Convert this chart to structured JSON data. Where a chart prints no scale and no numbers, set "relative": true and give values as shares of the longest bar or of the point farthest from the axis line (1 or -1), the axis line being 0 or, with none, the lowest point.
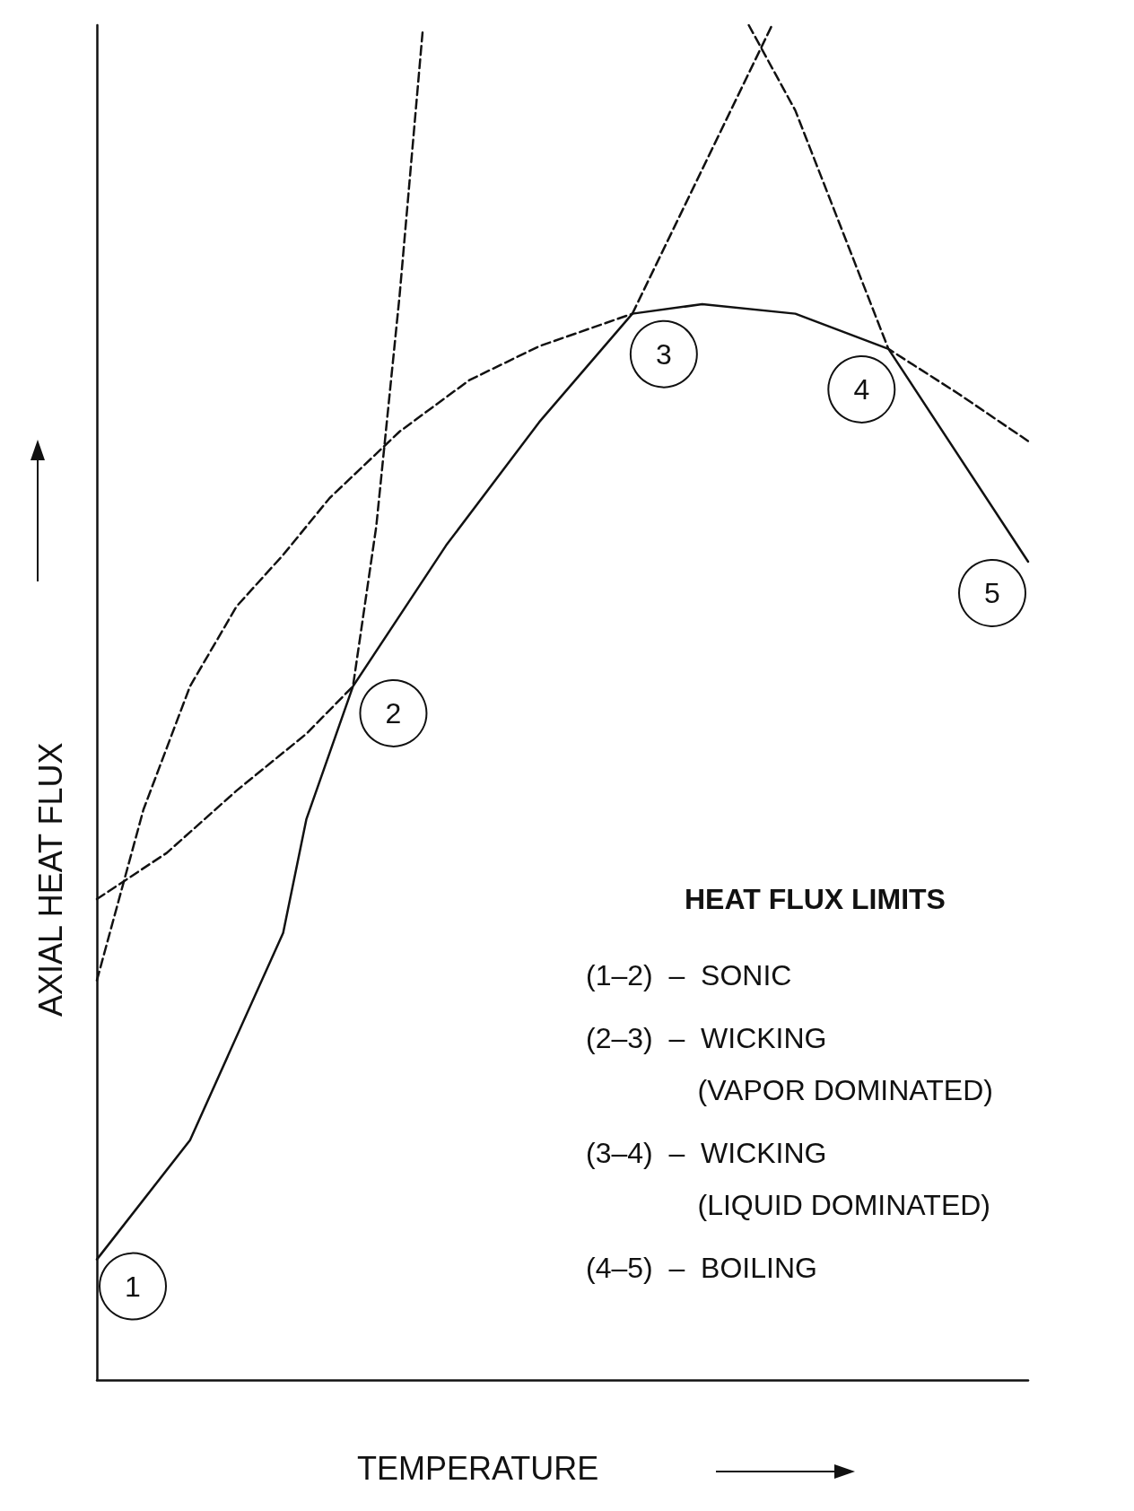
{
  "chart_data": {
    "type": "line",
    "relative": true,
    "xlabel": "TEMPERATURE",
    "ylabel": "AXIAL HEAT FLUX",
    "grid": false,
    "marker": "none",
    "categories": [
      null,
      null,
      null,
      null,
      null,
      null,
      null,
      null,
      null,
      null,
      null,
      null,
      null,
      null,
      null,
      null,
      null,
      null,
      null,
      null,
      null,
      null,
      null,
      null,
      null,
      null,
      null,
      null,
      null,
      null,
      null,
      null,
      null,
      null,
      null,
      null,
      null,
      null,
      null,
      null,
      null
    ],
    "series": [
      {
        "color": "#111111",
        "line_style": "solid",
        "values": [
          0.089,
          null,
          null,
          null,
          0.177,
          null,
          null,
          null,
          0.33,
          0.414,
          null,
          0.512,
          null,
          null,
          null,
          0.616,
          null,
          null,
          null,
          0.707,
          null,
          null,
          null,
          0.787,
          null,
          null,
          0.794,
          null,
          null,
          null,
          0.787,
          null,
          null,
          null,
          0.761,
          null,
          null,
          null,
          null,
          null,
          0.604
        ]
      },
      {
        "color": "#111111",
        "line_style": "dashed",
        "values": [
          0.295,
          null,
          0.421,
          null,
          0.512,
          null,
          0.571,
          null,
          0.609,
          null,
          0.651,
          null,
          null,
          0.7,
          null,
          null,
          0.738,
          null,
          null,
          0.763,
          null,
          null,
          null,
          0.787,
          null,
          null,
          null,
          null,
          null,
          null,
          null,
          null,
          null,
          null,
          null,
          null,
          null,
          null,
          null,
          null,
          null
        ]
      },
      {
        "color": "#111111",
        "line_style": "dashed",
        "values": [
          0.355,
          null,
          null,
          0.389,
          null,
          null,
          0.435,
          null,
          null,
          0.477,
          null,
          0.512,
          0.63,
          0.8,
          0.997,
          null,
          null,
          null,
          null,
          null,
          null,
          null,
          null,
          null,
          null,
          null,
          null,
          null,
          null,
          null,
          null,
          null,
          null,
          null,
          null,
          null,
          null,
          null,
          null,
          null,
          null
        ]
      },
      {
        "color": "#111111",
        "line_style": "dashed",
        "values": [
          null,
          null,
          null,
          null,
          null,
          null,
          null,
          null,
          null,
          null,
          null,
          null,
          null,
          null,
          null,
          null,
          null,
          null,
          null,
          null,
          null,
          null,
          null,
          0.787,
          null,
          null,
          null,
          null,
          null,
          1.0,
          null,
          null,
          null,
          null,
          null,
          null,
          null,
          null,
          null,
          null,
          null
        ]
      },
      {
        "color": "#111111",
        "line_style": "dashed",
        "values": [
          null,
          null,
          null,
          null,
          null,
          null,
          null,
          null,
          null,
          null,
          null,
          null,
          null,
          null,
          null,
          null,
          null,
          null,
          null,
          null,
          null,
          null,
          null,
          null,
          null,
          null,
          null,
          null,
          1.0,
          null,
          0.937,
          null,
          null,
          null,
          0.761,
          null,
          null,
          0.728,
          null,
          null,
          0.693
        ]
      }
    ],
    "annotations": [
      "1",
      "2",
      "3",
      "4",
      "5",
      "HEAT FLUX LIMITS",
      "(1–2)  –  SONIC",
      "(2–3)  –  WICKING\n              (VAPOR DOMINATED)",
      "(3–4)  –  WICKING\n              (LIQUID DOMINATED)",
      "(4–5)  –  BOILING"
    ]
  }
}
